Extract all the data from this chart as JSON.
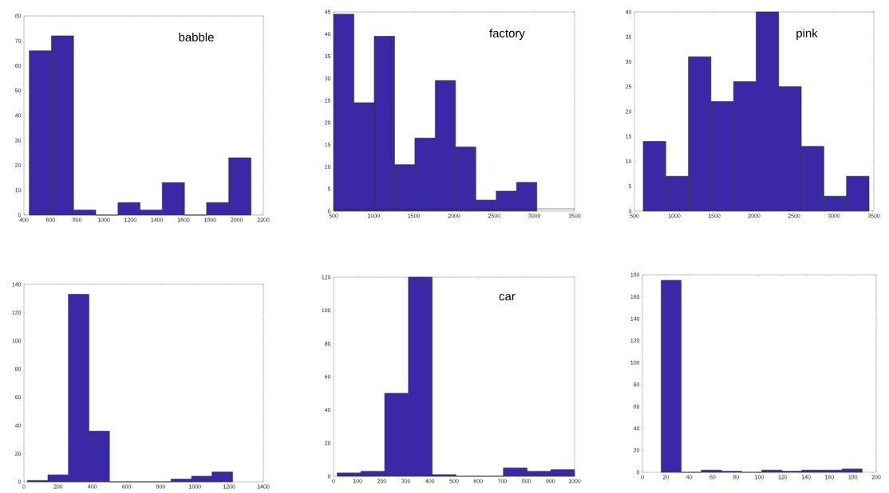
{
  "chart_data": [
    {
      "type": "histogram",
      "title": "babble",
      "bins": [
        440,
        607,
        773,
        940,
        1107,
        1273,
        1440,
        1607,
        1773,
        1940,
        2107
      ],
      "values": [
        66,
        72,
        2,
        0,
        5,
        2,
        13,
        0,
        5,
        23
      ],
      "color": "#3b28a6",
      "xlim": [
        400,
        2200
      ],
      "ylim": [
        0,
        80
      ],
      "xticks": [
        400,
        600,
        800,
        1000,
        1200,
        1400,
        1600,
        1800,
        2000,
        2200
      ],
      "yticks": [
        0,
        10,
        20,
        30,
        40,
        50,
        60,
        70,
        80
      ]
    },
    {
      "type": "histogram",
      "title": "factory",
      "bins": [
        500,
        753,
        1006,
        1259,
        1512,
        1765,
        2018,
        2271,
        2524,
        2777,
        3030
      ],
      "values": [
        44.5,
        24.5,
        39.5,
        10.5,
        16.5,
        29.5,
        14.5,
        2.5,
        4.5,
        6.5
      ],
      "color": "#3b28a6",
      "xlim": [
        500,
        3500
      ],
      "ylim": [
        0,
        45
      ],
      "xticks": [
        500,
        1000,
        1500,
        2000,
        2500,
        3000,
        3500
      ],
      "yticks": [
        0,
        5,
        10,
        15,
        20,
        25,
        30,
        35,
        40,
        45
      ],
      "ref_lines": [
        {
          "axis": "y",
          "value": 0.5
        }
      ]
    },
    {
      "type": "histogram",
      "title": "pink",
      "bins": [
        610,
        893,
        1176,
        1459,
        1742,
        2025,
        2308,
        2591,
        2874,
        3157,
        3440
      ],
      "values": [
        14,
        7,
        31,
        22,
        26,
        40,
        25,
        13,
        3,
        7
      ],
      "color": "#3b28a6",
      "xlim": [
        500,
        3500
      ],
      "ylim": [
        0,
        40
      ],
      "xticks": [
        500,
        1000,
        1500,
        2000,
        2500,
        3000,
        3500
      ],
      "yticks": [
        0,
        5,
        10,
        15,
        20,
        25,
        30,
        35,
        40
      ]
    },
    {
      "type": "histogram",
      "bins": [
        20,
        140,
        260,
        380,
        500,
        620,
        740,
        860,
        980,
        1100,
        1220
      ],
      "values": [
        1,
        5,
        133,
        36,
        0,
        0,
        0,
        2,
        4,
        7
      ],
      "color": "#3b28a6",
      "xlim": [
        0,
        1400
      ],
      "ylim": [
        0,
        140
      ],
      "xticks": [
        0,
        200,
        400,
        600,
        800,
        1000,
        1200,
        1400
      ],
      "yticks": [
        0,
        20,
        40,
        60,
        80,
        100,
        120,
        140
      ]
    },
    {
      "type": "histogram",
      "title": "car",
      "bins": [
        15,
        113.5,
        212,
        310.5,
        409,
        507.5,
        606,
        704.5,
        803,
        901.5,
        1000
      ],
      "values": [
        2,
        3,
        50,
        120,
        1,
        0,
        0,
        5,
        3,
        4
      ],
      "color": "#3b28a6",
      "xlim": [
        0,
        1000
      ],
      "ylim": [
        0,
        120
      ],
      "xticks": [
        0,
        100,
        200,
        300,
        400,
        500,
        600,
        700,
        800,
        900,
        1000
      ],
      "yticks": [
        0,
        20,
        40,
        60,
        80,
        100,
        120
      ]
    },
    {
      "type": "histogram",
      "bins": [
        16,
        33.2,
        50.4,
        67.6,
        84.8,
        102,
        119.2,
        136.4,
        153.6,
        170.8,
        188
      ],
      "values": [
        175,
        0,
        2,
        1,
        0,
        2,
        1,
        2,
        2,
        3
      ],
      "color": "#3b28a6",
      "xlim": [
        0,
        200
      ],
      "ylim": [
        0,
        180
      ],
      "xticks": [
        0,
        20,
        40,
        60,
        80,
        100,
        120,
        140,
        160,
        180,
        200
      ],
      "yticks": [
        0,
        20,
        40,
        60,
        80,
        100,
        120,
        140,
        160,
        180
      ]
    }
  ]
}
